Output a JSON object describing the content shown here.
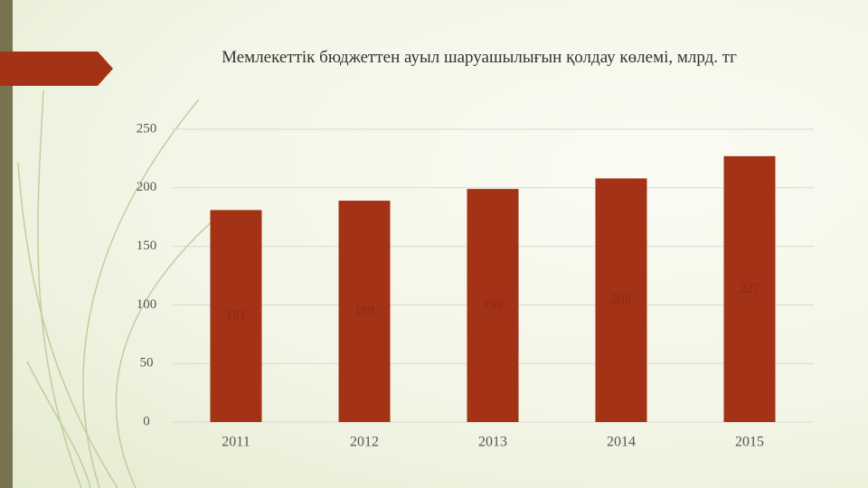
{
  "chart_data": {
    "type": "bar",
    "title": "Мемлекеттік бюджеттен ауыл шаруашылығын қолдау көлемі, млрд. тг",
    "categories": [
      "2011",
      "2012",
      "2013",
      "2014",
      "2015"
    ],
    "values": [
      181,
      189,
      199,
      208,
      227
    ],
    "color": "#a33217",
    "ylim": [
      0,
      250
    ],
    "yticks": [
      0,
      50,
      100,
      150,
      200,
      250
    ],
    "grid": true
  }
}
